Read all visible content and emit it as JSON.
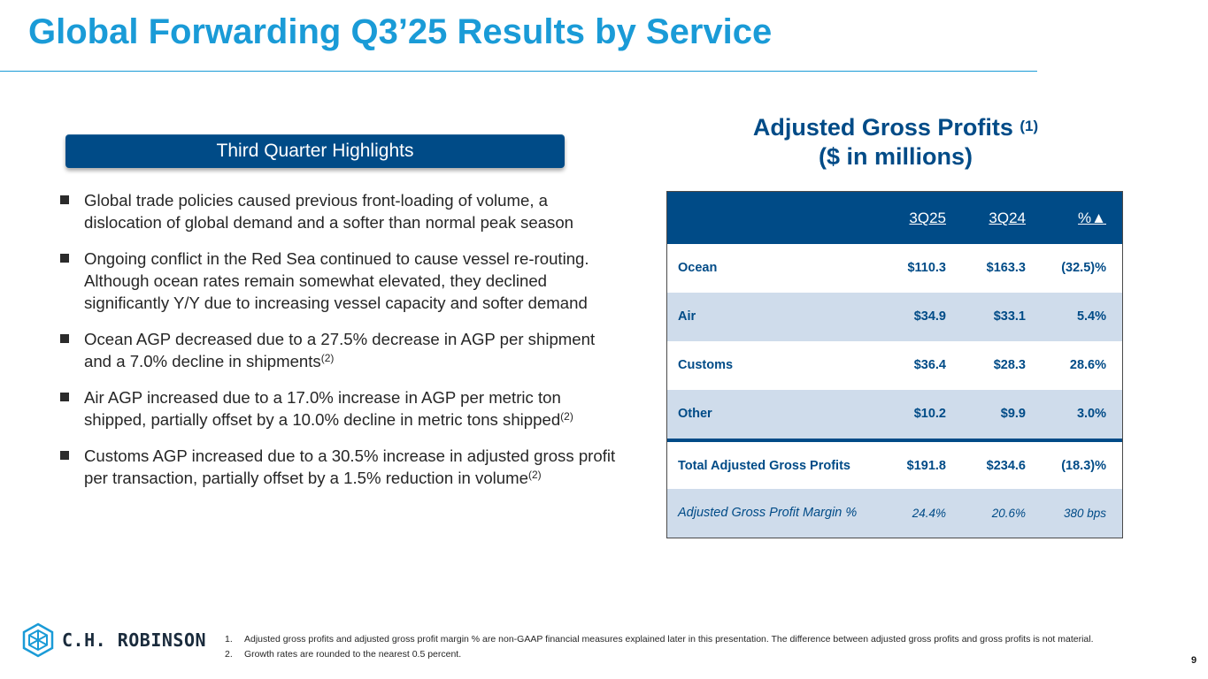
{
  "title": "Global Forwarding Q3’25 Results by Service",
  "highlights": {
    "heading": "Third Quarter Highlights",
    "bullets": [
      {
        "text": "Global trade policies caused previous front-loading of volume, a dislocation of global demand and a softer than normal peak season",
        "note": ""
      },
      {
        "text": "Ongoing conflict in the Red Sea continued to cause vessel re-routing. Although ocean rates remain somewhat elevated, they declined significantly Y/Y due to increasing vessel capacity and softer demand",
        "note": ""
      },
      {
        "text": "Ocean AGP decreased due to a 27.5% decrease in AGP per shipment and a 7.0% decline in shipments",
        "note": "(2)"
      },
      {
        "text": "Air AGP increased due to a 17.0% increase in AGP per metric ton shipped, partially offset by a 10.0% decline in metric tons shipped",
        "note": "(2)"
      },
      {
        "text": "Customs AGP increased due to a 30.5% increase in adjusted gross profit per transaction, partially offset by a 1.5% reduction in volume",
        "note": "(2)"
      }
    ]
  },
  "agp": {
    "title_line1": "Adjusted Gross Profits",
    "title_note": "(1)",
    "title_line2": "($ in millions)",
    "columns": [
      "3Q25",
      "3Q24",
      "%▲"
    ],
    "rows": [
      {
        "label": "Ocean",
        "q25": "$110.3",
        "q24": "$163.3",
        "pct": "(32.5)%"
      },
      {
        "label": "Air",
        "q25": "$34.9",
        "q24": "$33.1",
        "pct": "5.4%"
      },
      {
        "label": "Customs",
        "q25": "$36.4",
        "q24": "$28.3",
        "pct": "28.6%"
      },
      {
        "label": "Other",
        "q25": "$10.2",
        "q24": "$9.9",
        "pct": "3.0%"
      },
      {
        "label": "Total Adjusted Gross Profits",
        "q25": "$191.8",
        "q24": "$234.6",
        "pct": "(18.3)%"
      },
      {
        "label": "Adjusted Gross Profit Margin %",
        "q25": "24.4%",
        "q24": "20.6%",
        "pct": "380 bps"
      }
    ]
  },
  "footer": {
    "brand": "C.H. ROBINSON",
    "footnotes": [
      {
        "num": "1.",
        "text": "Adjusted gross profits and adjusted gross profit margin % are non-GAAP financial measures explained later in this presentation. The difference between adjusted gross profits and gross profits is not material."
      },
      {
        "num": "2.",
        "text": "Growth rates are rounded to the nearest 0.5 percent."
      }
    ],
    "page_number": "9"
  },
  "colors": {
    "accent": "#1a9bd7",
    "brand_navy": "#004b87",
    "row_alt": "#cfdceb"
  }
}
